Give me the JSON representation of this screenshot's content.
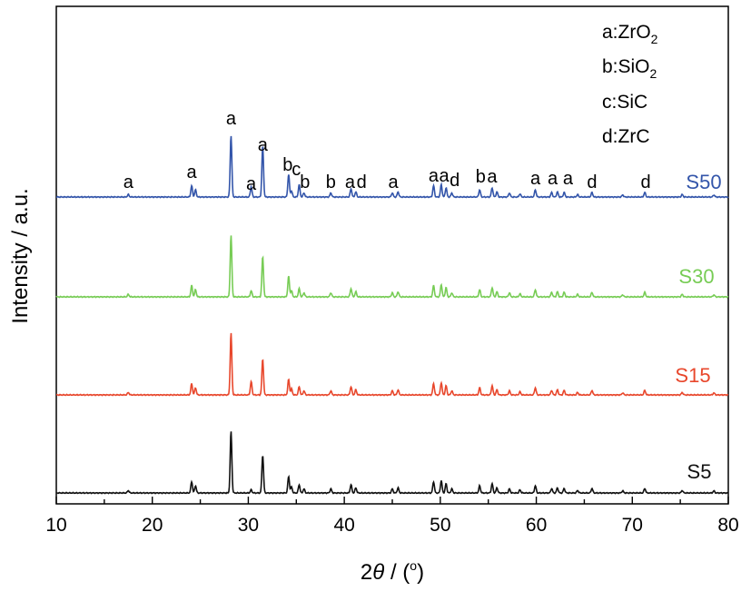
{
  "chart_data": {
    "type": "line",
    "xlabel_prefix": "2",
    "xlabel_theta": "θ",
    "xlabel_suffix": " / (",
    "xlabel_degree": "o",
    "xlabel_close": ")",
    "ylabel": "Intensity / a.u.",
    "xlim": [
      10,
      80
    ],
    "xticks": [
      "10",
      "20",
      "30",
      "40",
      "50",
      "60",
      "70",
      "80"
    ],
    "x_minor_step": 5,
    "grid": false,
    "legend_position": "top-right",
    "legend": [
      {
        "text": "a:ZrO",
        "sub": "2"
      },
      {
        "text": "b:SiO",
        "sub": "2"
      },
      {
        "text": "c:SiC",
        "sub": ""
      },
      {
        "text": "d:ZrC",
        "sub": ""
      }
    ],
    "peaks": [
      {
        "x": 17.5,
        "w": 0.12
      },
      {
        "x": 24.1,
        "w": 0.55
      },
      {
        "x": 24.5,
        "w": 0.35
      },
      {
        "x": 28.2,
        "w": 3.0
      },
      {
        "x": 30.3,
        "w": 0.18
      },
      {
        "x": 31.5,
        "w": 1.8
      },
      {
        "x": 34.2,
        "w": 0.7
      },
      {
        "x": 34.5,
        "w": 0.3
      },
      {
        "x": 35.3,
        "w": 0.4
      },
      {
        "x": 35.8,
        "w": 0.2
      },
      {
        "x": 38.6,
        "w": 0.2
      },
      {
        "x": 40.7,
        "w": 0.4
      },
      {
        "x": 41.2,
        "w": 0.25
      },
      {
        "x": 45.0,
        "w": 0.2
      },
      {
        "x": 45.6,
        "w": 0.25
      },
      {
        "x": 49.3,
        "w": 0.55
      },
      {
        "x": 50.1,
        "w": 0.6
      },
      {
        "x": 50.6,
        "w": 0.45
      },
      {
        "x": 51.2,
        "w": 0.2
      },
      {
        "x": 54.1,
        "w": 0.35
      },
      {
        "x": 55.4,
        "w": 0.45
      },
      {
        "x": 55.9,
        "w": 0.25
      },
      {
        "x": 57.2,
        "w": 0.2
      },
      {
        "x": 58.3,
        "w": 0.15
      },
      {
        "x": 59.9,
        "w": 0.35
      },
      {
        "x": 61.6,
        "w": 0.22
      },
      {
        "x": 62.2,
        "w": 0.25
      },
      {
        "x": 62.9,
        "w": 0.22
      },
      {
        "x": 64.3,
        "w": 0.12
      },
      {
        "x": 65.8,
        "w": 0.22
      },
      {
        "x": 69.0,
        "w": 0.1
      },
      {
        "x": 71.3,
        "w": 0.22
      },
      {
        "x": 75.2,
        "w": 0.12
      },
      {
        "x": 78.5,
        "w": 0.1
      }
    ],
    "series": [
      {
        "name": "S50",
        "color": "#3355aa",
        "scale": 0.0,
        "heights": {
          "30.3": 0.5,
          "31.5": 2.5,
          "34.2": 1.1,
          "35.3": 0.6
        }
      },
      {
        "name": "S30",
        "color": "#77cc55",
        "scale": 1.0,
        "heights": {
          "30.3": 0.3,
          "31.5": 1.95,
          "34.2": 1.0
        }
      },
      {
        "name": "S15",
        "color": "#e8472c",
        "scale": 1.0,
        "heights": {
          "30.3": 0.65,
          "31.5": 1.75,
          "34.2": 0.75
        }
      },
      {
        "name": "S5",
        "color": "#111111",
        "scale": 1.0,
        "heights": {
          "30.3": 0.15,
          "31.5": 1.85,
          "34.2": 0.8
        }
      }
    ],
    "peak_labels": [
      {
        "x": 17.5,
        "text": "a"
      },
      {
        "x": 24.1,
        "text": "a"
      },
      {
        "x": 28.2,
        "text": "a",
        "high": 1
      },
      {
        "x": 30.3,
        "text": "a"
      },
      {
        "x": 31.5,
        "text": "a",
        "mid": 1
      },
      {
        "x": 34.1,
        "text": "b"
      },
      {
        "x": 35.0,
        "text": "c"
      },
      {
        "x": 35.9,
        "text": "b"
      },
      {
        "x": 38.6,
        "text": "b"
      },
      {
        "x": 40.6,
        "text": "a"
      },
      {
        "x": 41.8,
        "text": "d"
      },
      {
        "x": 45.1,
        "text": "a"
      },
      {
        "x": 49.3,
        "text": "a"
      },
      {
        "x": 50.4,
        "text": "a"
      },
      {
        "x": 51.5,
        "text": "d"
      },
      {
        "x": 54.2,
        "text": "b"
      },
      {
        "x": 55.4,
        "text": "a"
      },
      {
        "x": 59.9,
        "text": "a"
      },
      {
        "x": 61.7,
        "text": "a"
      },
      {
        "x": 63.3,
        "text": "a"
      },
      {
        "x": 65.8,
        "text": "d"
      },
      {
        "x": 71.4,
        "text": "d"
      }
    ]
  }
}
